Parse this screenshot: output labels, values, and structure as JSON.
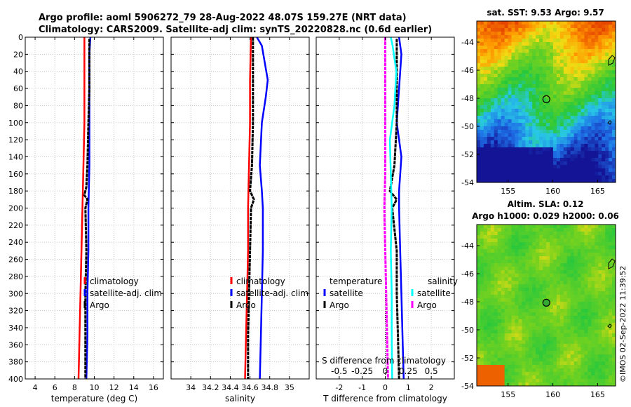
{
  "header": {
    "title_line1": "Argo profile: aoml 5906272_79 28-Aug-2022 48.07S 159.27E (NRT data)",
    "title_line2": "Climatology: CARS2009. Satellite-adj clim: synTS_20220828.nc (0.6d earlier)"
  },
  "watermark": "©IMOS 02-Sep-2022 11:39:52",
  "colors": {
    "climatology": "#ff0000",
    "satellite_adj": "#0000ff",
    "argo": "#000000",
    "s_satellite": "#00ffff",
    "s_argo": "#ff00ff",
    "grid": "#c8c8c8"
  },
  "chart_data": [
    {
      "id": "temperature",
      "type": "line",
      "xlabel": "temperature (deg C)",
      "ylabel": "",
      "xlim": [
        3,
        17
      ],
      "ylim": [
        0,
        400
      ],
      "xticks": [
        4,
        6,
        8,
        10,
        12,
        14,
        16
      ],
      "yticks": [
        0,
        20,
        40,
        60,
        80,
        100,
        120,
        140,
        160,
        180,
        200,
        220,
        240,
        260,
        280,
        300,
        320,
        340,
        360,
        380,
        400
      ],
      "legend": [
        "climatology",
        "satellite-adj. clim",
        "Argo"
      ],
      "series": [
        {
          "name": "climatology",
          "color": "#ff0000",
          "points": [
            [
              9.0,
              0
            ],
            [
              9.0,
              20
            ],
            [
              9.0,
              60
            ],
            [
              9.0,
              100
            ],
            [
              8.9,
              150
            ],
            [
              8.8,
              200
            ],
            [
              8.7,
              250
            ],
            [
              8.6,
              300
            ],
            [
              8.5,
              350
            ],
            [
              8.4,
              400
            ]
          ]
        },
        {
          "name": "satellite-adj. clim",
          "color": "#0000ff",
          "points": [
            [
              9.6,
              0
            ],
            [
              9.5,
              20
            ],
            [
              9.5,
              60
            ],
            [
              9.5,
              100
            ],
            [
              9.5,
              150
            ],
            [
              9.4,
              200
            ],
            [
              9.4,
              250
            ],
            [
              9.3,
              300
            ],
            [
              9.3,
              350
            ],
            [
              9.2,
              400
            ]
          ]
        },
        {
          "name": "Argo",
          "color": "#000000",
          "points": [
            [
              9.5,
              2
            ],
            [
              9.5,
              20
            ],
            [
              9.5,
              60
            ],
            [
              9.4,
              100
            ],
            [
              9.3,
              150
            ],
            [
              9.2,
              175
            ],
            [
              9.0,
              185
            ],
            [
              9.3,
              190
            ],
            [
              9.1,
              200
            ],
            [
              9.2,
              250
            ],
            [
              9.1,
              300
            ],
            [
              9.1,
              350
            ],
            [
              9.1,
              400
            ]
          ]
        }
      ]
    },
    {
      "id": "salinity",
      "type": "line",
      "xlabel": "salinity",
      "ylabel": "",
      "xlim": [
        33.8,
        35.2
      ],
      "ylim": [
        0,
        400
      ],
      "xticks": [
        34,
        34.2,
        34.4,
        34.6,
        34.8,
        35
      ],
      "xtick_labels": [
        "34",
        "34.2",
        "34.4",
        "34.6",
        "34.8",
        "35"
      ],
      "legend": [
        "climatology",
        "satellite-adj. clim",
        "Argo"
      ],
      "series": [
        {
          "name": "climatology",
          "color": "#ff0000",
          "points": [
            [
              34.61,
              0
            ],
            [
              34.6,
              50
            ],
            [
              34.6,
              100
            ],
            [
              34.59,
              150
            ],
            [
              34.58,
              200
            ],
            [
              34.58,
              250
            ],
            [
              34.57,
              300
            ],
            [
              34.56,
              350
            ],
            [
              34.55,
              400
            ]
          ]
        },
        {
          "name": "satellite-adj. clim",
          "color": "#0000ff",
          "points": [
            [
              34.67,
              0
            ],
            [
              34.72,
              10
            ],
            [
              34.75,
              30
            ],
            [
              34.78,
              50
            ],
            [
              34.76,
              70
            ],
            [
              34.72,
              100
            ],
            [
              34.7,
              150
            ],
            [
              34.72,
              180
            ],
            [
              34.73,
              200
            ],
            [
              34.73,
              250
            ],
            [
              34.72,
              300
            ],
            [
              34.71,
              350
            ],
            [
              34.7,
              400
            ]
          ]
        },
        {
          "name": "Argo",
          "color": "#000000",
          "points": [
            [
              34.63,
              0
            ],
            [
              34.63,
              50
            ],
            [
              34.63,
              100
            ],
            [
              34.62,
              150
            ],
            [
              34.6,
              180
            ],
            [
              34.64,
              190
            ],
            [
              34.61,
              200
            ],
            [
              34.6,
              250
            ],
            [
              34.59,
              300
            ],
            [
              34.58,
              350
            ],
            [
              34.58,
              400
            ]
          ]
        }
      ]
    },
    {
      "id": "differences",
      "type": "line",
      "xlabel": "T difference from climatology",
      "xlabel_top": "S difference from climatology",
      "ylabel": "",
      "xlim": [
        -3,
        3
      ],
      "ylim": [
        0,
        400
      ],
      "xticks": [
        -2,
        -1,
        0,
        1,
        2
      ],
      "s_xticks": [
        -0.5,
        -0.25,
        0,
        0.25,
        0.5
      ],
      "s_xtick_labels": [
        "-0.5",
        "-0.25",
        "0",
        "0.25",
        "0.5"
      ],
      "s_scale": 4,
      "legend_groups": [
        {
          "title": "temperature",
          "items": [
            "satellite",
            "Argo"
          ]
        },
        {
          "title": "salinity",
          "items": [
            "satellite",
            "Argo"
          ]
        }
      ],
      "series": [
        {
          "name": "T satellite",
          "color": "#0000ff",
          "points": [
            [
              0.6,
              0
            ],
            [
              0.7,
              20
            ],
            [
              0.6,
              60
            ],
            [
              0.5,
              100
            ],
            [
              0.7,
              140
            ],
            [
              0.6,
              180
            ],
            [
              0.6,
              200
            ],
            [
              0.65,
              250
            ],
            [
              0.7,
              300
            ],
            [
              0.75,
              350
            ],
            [
              0.8,
              400
            ]
          ]
        },
        {
          "name": "T Argo",
          "color": "#000000",
          "points": [
            [
              0.5,
              2
            ],
            [
              0.5,
              20
            ],
            [
              0.5,
              60
            ],
            [
              0.5,
              100
            ],
            [
              0.4,
              150
            ],
            [
              0.2,
              180
            ],
            [
              0.5,
              190
            ],
            [
              0.3,
              200
            ],
            [
              0.5,
              250
            ],
            [
              0.5,
              300
            ],
            [
              0.55,
              350
            ],
            [
              0.6,
              400
            ]
          ]
        },
        {
          "name": "S satellite",
          "color": "#00ffff",
          "points": [
            [
              0.06,
              0
            ],
            [
              0.08,
              10
            ],
            [
              0.12,
              40
            ],
            [
              0.1,
              80
            ],
            [
              0.05,
              120
            ],
            [
              0.06,
              160
            ],
            [
              0.07,
              200
            ],
            [
              0.06,
              250
            ],
            [
              0.07,
              300
            ],
            [
              0.07,
              350
            ],
            [
              0.075,
              400
            ]
          ]
        },
        {
          "name": "S Argo",
          "color": "#ff00ff",
          "points": [
            [
              0.0,
              0
            ],
            [
              0.0,
              40
            ],
            [
              0.0,
              100
            ],
            [
              0.0,
              160
            ],
            [
              -0.01,
              200
            ],
            [
              0.0,
              250
            ],
            [
              0.01,
              300
            ],
            [
              0.02,
              350
            ],
            [
              0.03,
              400
            ]
          ]
        }
      ]
    }
  ],
  "maps": [
    {
      "id": "sst-map",
      "title": "sat. SST: 9.53 Argo: 9.57",
      "xlim": [
        151.5,
        167
      ],
      "ylim": [
        -54,
        -42.5
      ],
      "xticks": [
        155,
        160,
        165
      ],
      "yticks": [
        -44,
        -46,
        -48,
        -50,
        -52,
        -54
      ],
      "marker": {
        "lon": 159.27,
        "lat": -48.07
      }
    },
    {
      "id": "sla-map",
      "title_line1": "Altim. SLA: 0.12",
      "title_line2": "Argo h1000: 0.029 h2000: 0.06",
      "xlim": [
        151.5,
        167
      ],
      "ylim": [
        -54,
        -42.5
      ],
      "xticks": [
        155,
        160,
        165
      ],
      "yticks": [
        -44,
        -46,
        -48,
        -50,
        -52,
        -54
      ],
      "marker": {
        "lon": 159.27,
        "lat": -48.07
      }
    }
  ]
}
